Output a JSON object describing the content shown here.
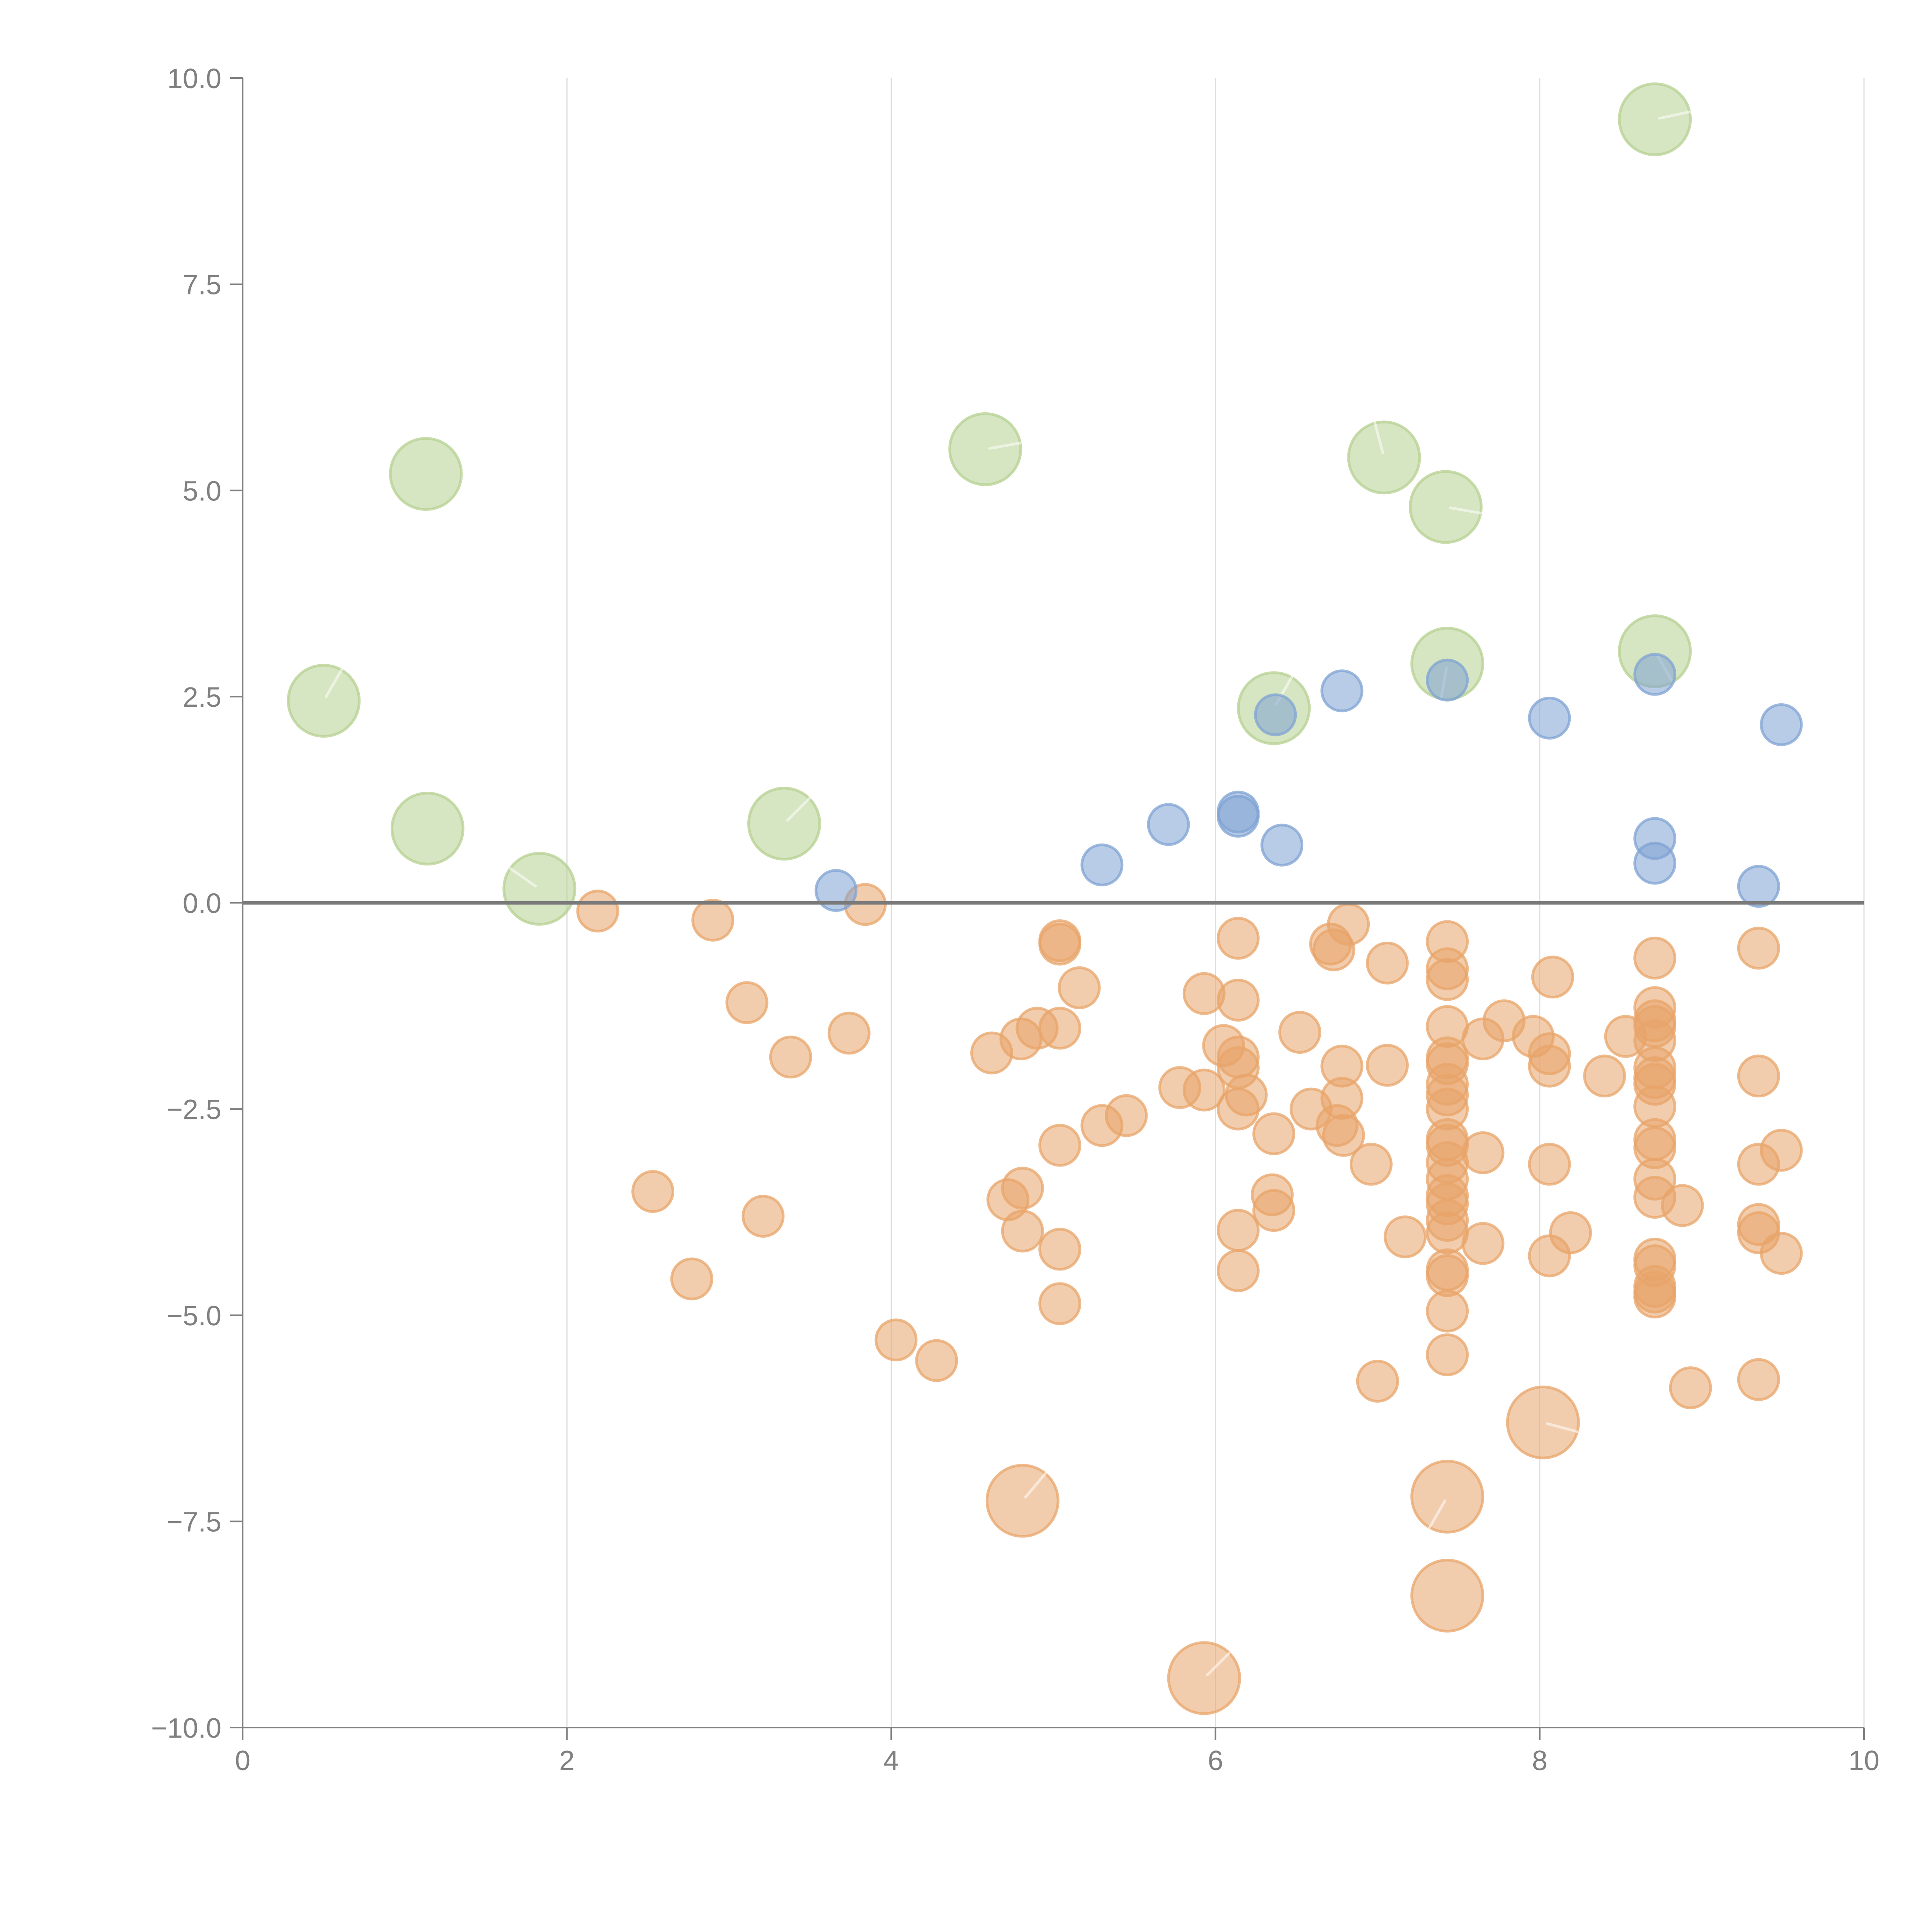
{
  "chart_data": {
    "type": "scatter",
    "title": "",
    "xlabel": "",
    "ylabel": "",
    "xlim": [
      0,
      10
    ],
    "ylim": [
      -10,
      10
    ],
    "grid": "vertical",
    "legend": "none",
    "x_ticks": [
      0,
      2,
      4,
      6,
      8,
      10
    ],
    "x_tick_labels": [
      "0",
      "2",
      "4",
      "6",
      "8",
      "10"
    ],
    "y_ticks": [
      10,
      7.5,
      5,
      2.5,
      0,
      -2.5,
      -5,
      -7.5,
      -10
    ],
    "y_tick_labels": [
      "10.0",
      "7.5",
      "5.0",
      "2.5",
      "0.0",
      "−2.5",
      "−5.0",
      "−7.5",
      "−10.0"
    ],
    "reference_line_y": 0,
    "series": [
      {
        "name": "green-large",
        "color": "#b5d090",
        "size": "large",
        "points": [
          {
            "x": 0.5,
            "y": 2.45,
            "angle": 60
          },
          {
            "x": 1.13,
            "y": 5.2
          },
          {
            "x": 1.14,
            "y": 0.9
          },
          {
            "x": 1.83,
            "y": 0.17,
            "angle": 145
          },
          {
            "x": 3.34,
            "y": 0.96,
            "angle": 45
          },
          {
            "x": 4.58,
            "y": 5.5,
            "angle": 10
          },
          {
            "x": 6.36,
            "y": 2.36,
            "angle": 60
          },
          {
            "x": 7.04,
            "y": 5.4,
            "angle": 105
          },
          {
            "x": 7.42,
            "y": 4.8,
            "angle": 350
          },
          {
            "x": 7.43,
            "y": 2.9,
            "angle": 260
          },
          {
            "x": 8.71,
            "y": 3.05,
            "angle": 300
          },
          {
            "x": 8.71,
            "y": 9.5,
            "angle": 12
          }
        ]
      },
      {
        "name": "blue",
        "color": "#7fa3d3",
        "size": "small",
        "points": [
          {
            "x": 3.66,
            "y": 0.15
          },
          {
            "x": 5.3,
            "y": 0.46
          },
          {
            "x": 5.71,
            "y": 0.95
          },
          {
            "x": 6.14,
            "y": 1.1
          },
          {
            "x": 6.14,
            "y": 1.05
          },
          {
            "x": 6.41,
            "y": 0.7
          },
          {
            "x": 6.37,
            "y": 2.28
          },
          {
            "x": 6.78,
            "y": 2.57
          },
          {
            "x": 7.43,
            "y": 2.7
          },
          {
            "x": 8.06,
            "y": 2.24
          },
          {
            "x": 8.71,
            "y": 2.77
          },
          {
            "x": 8.71,
            "y": 0.78
          },
          {
            "x": 8.71,
            "y": 0.48
          },
          {
            "x": 9.35,
            "y": 0.2
          },
          {
            "x": 9.49,
            "y": 2.16
          }
        ]
      },
      {
        "name": "orange",
        "color": "#e8a46a",
        "size": "small",
        "points": [
          {
            "x": 2.19,
            "y": -0.1
          },
          {
            "x": 2.9,
            "y": -0.21
          },
          {
            "x": 3.11,
            "y": -1.21
          },
          {
            "x": 3.38,
            "y": -1.87
          },
          {
            "x": 3.74,
            "y": -1.58
          },
          {
            "x": 3.84,
            "y": -0.02
          },
          {
            "x": 2.53,
            "y": -3.5
          },
          {
            "x": 2.77,
            "y": -4.56
          },
          {
            "x": 3.21,
            "y": -3.8
          },
          {
            "x": 4.03,
            "y": -5.3
          },
          {
            "x": 4.28,
            "y": -5.55
          },
          {
            "x": 4.62,
            "y": -1.82
          },
          {
            "x": 4.8,
            "y": -1.65
          },
          {
            "x": 4.9,
            "y": -1.52
          },
          {
            "x": 5.04,
            "y": -1.52
          },
          {
            "x": 5.04,
            "y": -0.46
          },
          {
            "x": 5.04,
            "y": -0.5
          },
          {
            "x": 5.16,
            "y": -1.03
          },
          {
            "x": 4.72,
            "y": -3.6
          },
          {
            "x": 4.81,
            "y": -3.46
          },
          {
            "x": 4.81,
            "y": -3.98
          },
          {
            "x": 5.04,
            "y": -2.94
          },
          {
            "x": 5.04,
            "y": -4.2
          },
          {
            "x": 5.04,
            "y": -4.86
          },
          {
            "x": 5.3,
            "y": -2.7
          },
          {
            "x": 5.45,
            "y": -2.58
          },
          {
            "x": 5.78,
            "y": -2.24
          },
          {
            "x": 5.93,
            "y": -2.27
          },
          {
            "x": 5.93,
            "y": -1.1
          },
          {
            "x": 6.05,
            "y": -1.73
          },
          {
            "x": 6.14,
            "y": -0.43
          },
          {
            "x": 6.14,
            "y": -1.18
          },
          {
            "x": 6.14,
            "y": -1.87
          },
          {
            "x": 6.14,
            "y": -2.0
          },
          {
            "x": 6.19,
            "y": -2.33
          },
          {
            "x": 6.14,
            "y": -2.5
          },
          {
            "x": 6.14,
            "y": -3.97
          },
          {
            "x": 6.14,
            "y": -4.46
          },
          {
            "x": 6.36,
            "y": -2.8
          },
          {
            "x": 6.35,
            "y": -3.54
          },
          {
            "x": 6.36,
            "y": -3.73
          },
          {
            "x": 6.52,
            "y": -1.57
          },
          {
            "x": 6.59,
            "y": -2.5
          },
          {
            "x": 6.71,
            "y": -0.5
          },
          {
            "x": 6.73,
            "y": -0.57
          },
          {
            "x": 6.82,
            "y": -0.26
          },
          {
            "x": 6.78,
            "y": -1.98
          },
          {
            "x": 6.78,
            "y": -2.37
          },
          {
            "x": 6.75,
            "y": -2.7
          },
          {
            "x": 6.79,
            "y": -2.82
          },
          {
            "x": 6.96,
            "y": -3.17
          },
          {
            "x": 7.06,
            "y": -0.73
          },
          {
            "x": 7.06,
            "y": -1.97
          },
          {
            "x": 7.17,
            "y": -4.05
          },
          {
            "x": 7.0,
            "y": -5.8
          },
          {
            "x": 7.43,
            "y": -0.47
          },
          {
            "x": 7.43,
            "y": -0.8
          },
          {
            "x": 7.43,
            "y": -0.93
          },
          {
            "x": 7.43,
            "y": -1.5
          },
          {
            "x": 7.43,
            "y": -1.88
          },
          {
            "x": 7.43,
            "y": -1.95
          },
          {
            "x": 7.43,
            "y": -2.2
          },
          {
            "x": 7.43,
            "y": -2.33
          },
          {
            "x": 7.43,
            "y": -2.5
          },
          {
            "x": 7.43,
            "y": -2.87
          },
          {
            "x": 7.43,
            "y": -2.94
          },
          {
            "x": 7.43,
            "y": -3.15
          },
          {
            "x": 7.43,
            "y": -3.35
          },
          {
            "x": 7.43,
            "y": -3.55
          },
          {
            "x": 7.43,
            "y": -3.65
          },
          {
            "x": 7.43,
            "y": -3.85
          },
          {
            "x": 7.43,
            "y": -4.0
          },
          {
            "x": 7.43,
            "y": -4.45
          },
          {
            "x": 7.43,
            "y": -4.52
          },
          {
            "x": 7.43,
            "y": -4.95
          },
          {
            "x": 7.43,
            "y": -5.48
          },
          {
            "x": 7.65,
            "y": -1.65
          },
          {
            "x": 7.78,
            "y": -1.43
          },
          {
            "x": 7.65,
            "y": -3.03
          },
          {
            "x": 7.65,
            "y": -4.13
          },
          {
            "x": 7.96,
            "y": -1.62
          },
          {
            "x": 8.06,
            "y": -1.83
          },
          {
            "x": 8.06,
            "y": -1.98
          },
          {
            "x": 8.08,
            "y": -0.9
          },
          {
            "x": 8.06,
            "y": -3.17
          },
          {
            "x": 8.06,
            "y": -4.28
          },
          {
            "x": 8.19,
            "y": -4.0
          },
          {
            "x": 8.4,
            "y": -2.1
          },
          {
            "x": 8.53,
            "y": -1.62
          },
          {
            "x": 8.71,
            "y": -0.67
          },
          {
            "x": 8.71,
            "y": -1.27
          },
          {
            "x": 8.71,
            "y": -1.43
          },
          {
            "x": 8.71,
            "y": -1.5
          },
          {
            "x": 8.71,
            "y": -1.67
          },
          {
            "x": 8.71,
            "y": -2.0
          },
          {
            "x": 8.71,
            "y": -2.12
          },
          {
            "x": 8.71,
            "y": -2.2
          },
          {
            "x": 8.71,
            "y": -2.47
          },
          {
            "x": 8.71,
            "y": -2.87
          },
          {
            "x": 8.71,
            "y": -2.97
          },
          {
            "x": 8.71,
            "y": -3.35
          },
          {
            "x": 8.71,
            "y": -3.57
          },
          {
            "x": 8.71,
            "y": -4.32
          },
          {
            "x": 8.71,
            "y": -4.4
          },
          {
            "x": 8.71,
            "y": -4.65
          },
          {
            "x": 8.71,
            "y": -4.72
          },
          {
            "x": 8.71,
            "y": -4.78
          },
          {
            "x": 8.88,
            "y": -3.67
          },
          {
            "x": 8.93,
            "y": -5.88
          },
          {
            "x": 9.35,
            "y": -0.55
          },
          {
            "x": 9.35,
            "y": -2.1
          },
          {
            "x": 9.35,
            "y": -3.17
          },
          {
            "x": 9.35,
            "y": -3.9
          },
          {
            "x": 9.35,
            "y": -4.0
          },
          {
            "x": 9.35,
            "y": -5.78
          },
          {
            "x": 9.49,
            "y": -3.0
          },
          {
            "x": 9.49,
            "y": -4.25
          }
        ]
      },
      {
        "name": "orange-large",
        "color": "#e8a46a",
        "size": "large",
        "points": [
          {
            "x": 4.81,
            "y": -7.25,
            "angle": 50
          },
          {
            "x": 7.43,
            "y": -7.2,
            "angle": 240
          },
          {
            "x": 7.43,
            "y": -8.4
          },
          {
            "x": 8.02,
            "y": -6.3,
            "angle": 345
          },
          {
            "x": 5.93,
            "y": -9.4,
            "angle": 45
          }
        ]
      }
    ]
  }
}
